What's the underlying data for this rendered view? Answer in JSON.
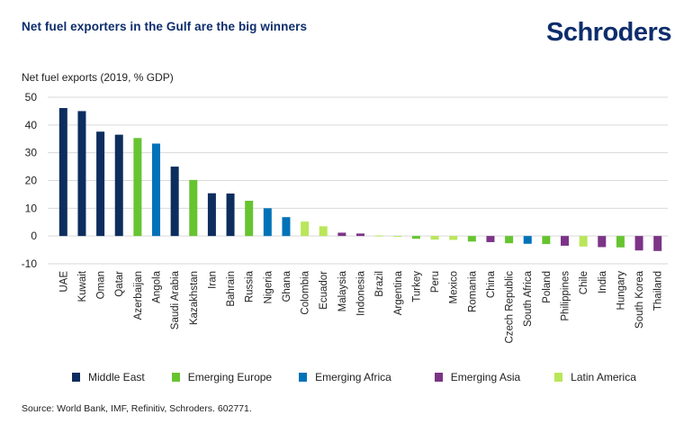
{
  "header": {
    "title": "Net fuel exporters in the Gulf are the big winners",
    "logo": "Schroders"
  },
  "source": "Source: World Bank, IMF, Refinitiv, Schroders. 602771.",
  "colors": {
    "title": "#0d2d6c",
    "grid": "#d9d9d9"
  },
  "chart_data": {
    "type": "bar",
    "title": "Net fuel exporters in the Gulf are the big winners",
    "xlabel": "",
    "ylabel": "Net fuel exports (2019, % GDP)",
    "ylim": [
      -10,
      50
    ],
    "yticks": [
      50,
      40,
      30,
      20,
      10,
      0,
      -10
    ],
    "grid": true,
    "legend_position": "bottom",
    "groups": [
      {
        "name": "Middle East",
        "color": "#0d2d5e"
      },
      {
        "name": "Emerging Europe",
        "color": "#66c430"
      },
      {
        "name": "Emerging Africa",
        "color": "#0072b8"
      },
      {
        "name": "Emerging Asia",
        "color": "#7b3486"
      },
      {
        "name": "Latin America",
        "color": "#b9e65a"
      }
    ],
    "categories": [
      "UAE",
      "Kuwait",
      "Oman",
      "Qatar",
      "Azerbaijan",
      "Angola",
      "Saudi Arabia",
      "Kazakhstan",
      "Iran",
      "Bahrain",
      "Russia",
      "Nigeria",
      "Ghana",
      "Colombia",
      "Ecuador",
      "Malaysia",
      "Indonesia",
      "Brazil",
      "Argentina",
      "Turkey",
      "Peru",
      "Mexico",
      "Romania",
      "China",
      "Czech Republic",
      "South Africa",
      "Poland",
      "Philippines",
      "Chile",
      "India",
      "Hungary",
      "South Korea",
      "Thailand"
    ],
    "values": [
      46.1,
      45.0,
      37.6,
      36.5,
      35.3,
      33.3,
      25.0,
      20.2,
      15.4,
      15.3,
      12.7,
      10.0,
      6.8,
      5.2,
      3.5,
      1.2,
      0.9,
      0.2,
      -0.3,
      -1.0,
      -1.3,
      -1.4,
      -2.0,
      -2.2,
      -2.6,
      -2.8,
      -2.9,
      -3.5,
      -3.8,
      -4.0,
      -4.1,
      -5.2,
      -5.4
    ],
    "group_index": [
      0,
      0,
      0,
      0,
      1,
      2,
      0,
      1,
      0,
      0,
      1,
      2,
      2,
      4,
      4,
      3,
      3,
      4,
      4,
      1,
      4,
      4,
      1,
      3,
      1,
      2,
      1,
      3,
      4,
      3,
      1,
      3,
      3
    ]
  }
}
